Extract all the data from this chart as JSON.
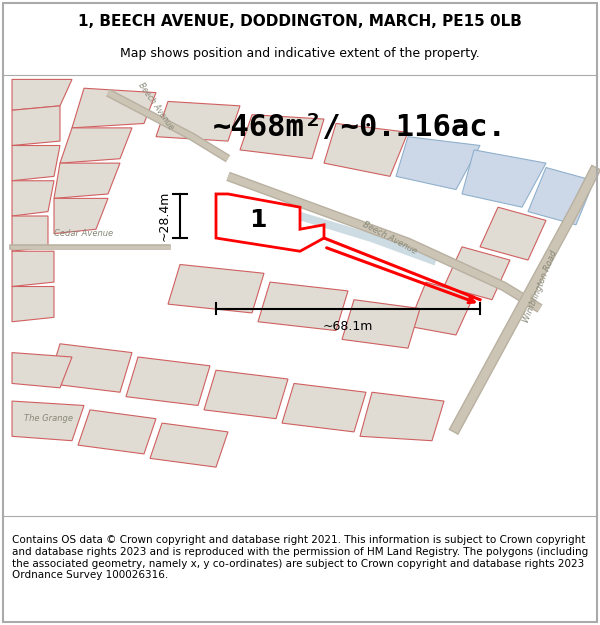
{
  "title_line1": "1, BEECH AVENUE, DODDINGTON, MARCH, PE15 0LB",
  "title_line2": "Map shows position and indicative extent of the property.",
  "area_text": "~468m²/~0.116ac.",
  "label_number": "1",
  "dim_width": "~68.1m",
  "dim_height": "~28.4m",
  "footer_text": "Contains OS data © Crown copyright and database right 2021. This information is subject to Crown copyright and database rights 2023 and is reproduced with the permission of HM Land Registry. The polygons (including the associated geometry, namely x, y co-ordinates) are subject to Crown copyright and database rights 2023 Ordnance Survey 100026316.",
  "bg_color": "#f0eeeb",
  "map_bg": "#f0eeea",
  "property_color": "#ff0000",
  "property_fill": "#ffffff",
  "title_fontsize": 11,
  "subtitle_fontsize": 9,
  "area_fontsize": 22,
  "footer_fontsize": 7.5,
  "border_color": "#cccccc",
  "figure_width": 6.0,
  "figure_height": 6.25
}
